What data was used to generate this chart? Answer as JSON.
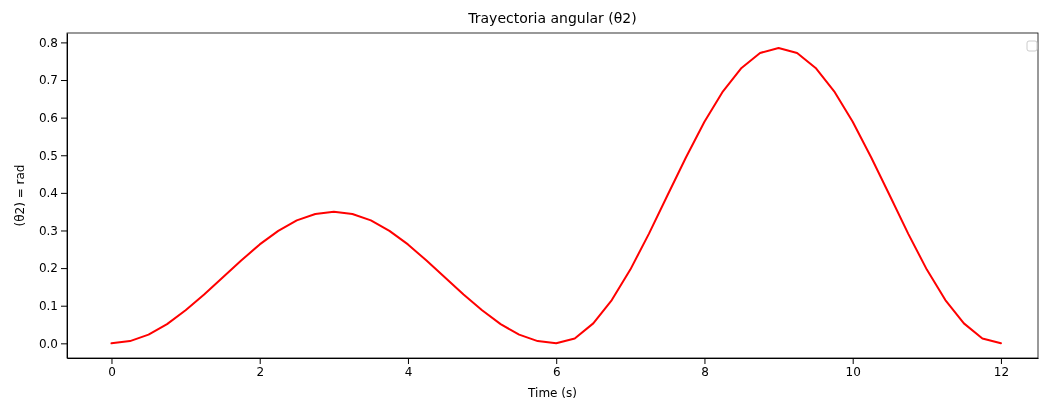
{
  "chart_data": {
    "type": "line",
    "title": "Trayectoria angular (θ2)",
    "xlabel": "Time (s)",
    "ylabel": "(θ2) = rad",
    "x": [
      0,
      0.25,
      0.5,
      0.75,
      1,
      1.25,
      1.5,
      1.75,
      2,
      2.25,
      2.5,
      2.75,
      3,
      3.25,
      3.5,
      3.75,
      4,
      4.25,
      4.5,
      4.75,
      5,
      5.25,
      5.5,
      5.75,
      6,
      6.25,
      6.5,
      6.75,
      7,
      7.25,
      7.5,
      7.75,
      8,
      8.25,
      8.5,
      8.75,
      9,
      9.25,
      9.5,
      9.75,
      10,
      10.25,
      10.5,
      10.75,
      11,
      11.25,
      11.5,
      11.75,
      12
    ],
    "series": [
      {
        "color": "#ff0000",
        "values": [
          0,
          0.006,
          0.023,
          0.051,
          0.088,
          0.13,
          0.175,
          0.22,
          0.263,
          0.299,
          0.327,
          0.344,
          0.35,
          0.344,
          0.327,
          0.299,
          0.263,
          0.22,
          0.175,
          0.13,
          0.088,
          0.051,
          0.023,
          0.006,
          0,
          0.013,
          0.053,
          0.115,
          0.196,
          0.291,
          0.393,
          0.494,
          0.589,
          0.67,
          0.732,
          0.772,
          0.785,
          0.772,
          0.732,
          0.67,
          0.589,
          0.494,
          0.393,
          0.291,
          0.196,
          0.115,
          0.053,
          0.013,
          0
        ]
      }
    ],
    "xlim": [
      -0.6,
      12.5
    ],
    "ylim": [
      -0.039,
      0.825
    ],
    "xticks": [
      0,
      2,
      4,
      6,
      8,
      10,
      12
    ],
    "yticks": [
      {
        "value": 0,
        "label": "0.0"
      },
      {
        "value": 0.1,
        "label": "0.1"
      },
      {
        "value": 0.2,
        "label": "0.2"
      },
      {
        "value": 0.3,
        "label": "0.3"
      },
      {
        "value": 0.4,
        "label": "0.4"
      },
      {
        "value": 0.5,
        "label": "0.5"
      },
      {
        "value": 0.6,
        "label": "0.6"
      },
      {
        "value": 0.7,
        "label": "0.7"
      },
      {
        "value": 0.8,
        "label": "0.8"
      }
    ]
  }
}
